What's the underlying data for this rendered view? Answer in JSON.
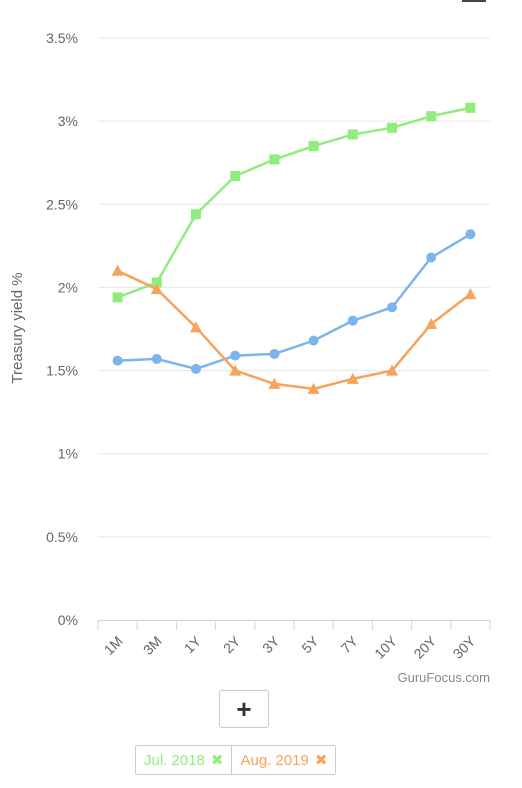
{
  "chart_data": {
    "type": "line",
    "categories": [
      "1M",
      "3M",
      "1Y",
      "2Y",
      "3Y",
      "5Y",
      "7Y",
      "10Y",
      "20Y",
      "30Y"
    ],
    "ylabel": "Treasury yield %",
    "ylim": [
      0,
      3.5
    ],
    "yticks": [
      "0%",
      "0.5%",
      "1%",
      "1.5%",
      "2%",
      "2.5%",
      "3%",
      "3.5%"
    ],
    "ytick_values": [
      0,
      0.5,
      1,
      1.5,
      2,
      2.5,
      3,
      3.5
    ],
    "grid": true,
    "legend_position": "bottom",
    "series": [
      {
        "name": "",
        "color": "#7cb5ec",
        "marker": "circle",
        "values": [
          1.56,
          1.57,
          1.51,
          1.59,
          1.6,
          1.68,
          1.8,
          1.88,
          2.18,
          2.32
        ]
      },
      {
        "name": "Jul. 2018",
        "color": "#90ed7d",
        "marker": "square",
        "values": [
          1.94,
          2.03,
          2.44,
          2.67,
          2.77,
          2.85,
          2.92,
          2.96,
          3.03,
          3.08
        ]
      },
      {
        "name": "Aug. 2019",
        "color": "#f7a35c",
        "marker": "triangle",
        "values": [
          2.1,
          1.99,
          1.76,
          1.5,
          1.42,
          1.39,
          1.45,
          1.5,
          1.78,
          1.96
        ]
      }
    ]
  },
  "credit": "GuruFocus.com",
  "controls": {
    "add_label": "+",
    "remove_icon": "✖"
  },
  "legend": [
    {
      "label": "Jul. 2018",
      "color": "#90ed7d"
    },
    {
      "label": "Aug. 2019",
      "color": "#f7a35c"
    }
  ]
}
